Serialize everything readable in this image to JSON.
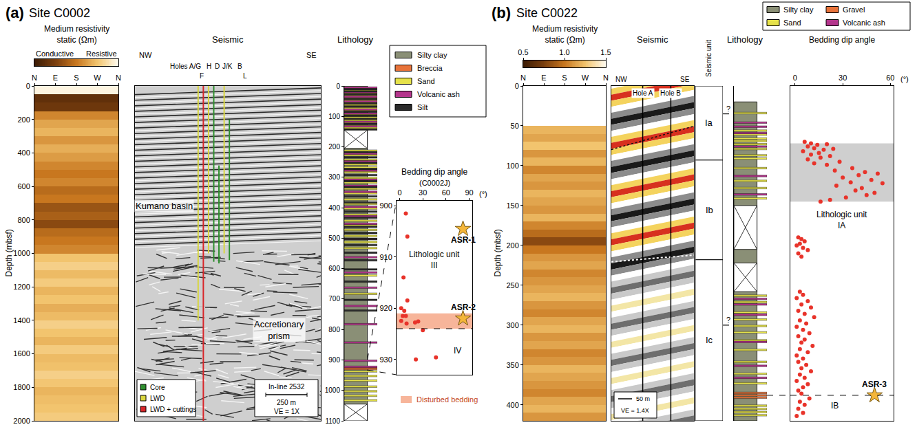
{
  "chart_data": [
    {
      "type": "heatmap",
      "panel": "(a)",
      "site": "Site C0002",
      "title": "Medium resistivity static (Ωm)",
      "colorbar": {
        "range": [
          0,
          1
        ],
        "labels": [
          "Conductive",
          "Resistive"
        ]
      },
      "xlim": [
        0,
        4
      ],
      "xticks": [
        {
          "value": 0,
          "label": "N"
        },
        {
          "value": 1,
          "label": "E"
        },
        {
          "value": 2,
          "label": "S"
        },
        {
          "value": 3,
          "label": "W"
        },
        {
          "value": 4,
          "label": "N"
        }
      ],
      "ylabel": "Depth (mbsf)",
      "ylim": [
        0,
        2000
      ],
      "yticks": [
        0,
        200,
        400,
        600,
        800,
        1000,
        1200,
        1400,
        1600,
        1800,
        2000
      ],
      "depths": [
        25,
        75,
        125,
        175,
        225,
        275,
        325,
        375,
        425,
        475,
        525,
        575,
        625,
        675,
        725,
        775,
        825,
        875,
        925,
        975,
        1025,
        1075,
        1125,
        1175,
        1225,
        1275,
        1325,
        1375,
        1425,
        1475,
        1525,
        1575,
        1625,
        1675,
        1725,
        1775,
        1825,
        1875,
        1925,
        1975
      ],
      "values": [
        0.97,
        0.15,
        0.2,
        0.55,
        0.65,
        0.7,
        0.6,
        0.68,
        0.62,
        0.55,
        0.5,
        0.55,
        0.45,
        0.5,
        0.35,
        0.4,
        0.3,
        0.45,
        0.5,
        0.55,
        0.75,
        0.8,
        0.72,
        0.78,
        0.7,
        0.75,
        0.68,
        0.72,
        0.8,
        0.75,
        0.7,
        0.78,
        0.72,
        0.74,
        0.8,
        0.76,
        0.7,
        0.73,
        0.75,
        0.78
      ]
    },
    {
      "type": "seismic",
      "title": "Seismic",
      "ylim": [
        0,
        2000
      ],
      "tick_labels": false,
      "direction_labels": [
        "NW",
        "SE"
      ],
      "hole_labels": [
        "Holes A/G",
        "H",
        "D",
        "J/K",
        "B"
      ],
      "hole_labels_lower": [
        "F",
        "L"
      ],
      "labels": [
        "Kumano basin",
        "Accretionary prism"
      ],
      "series": [
        {
          "name": "Core",
          "color": "#2f8f2f"
        },
        {
          "name": "LWD",
          "color": "#d9d63f"
        },
        {
          "name": "LWD + cuttings",
          "color": "#d8262a"
        }
      ],
      "boreholes": [
        {
          "kind": "LWD",
          "top": 0,
          "bottom": 1400
        },
        {
          "kind": "LWD + cuttings",
          "top": 0,
          "bottom": 2000
        },
        {
          "kind": "LWD",
          "top": 0,
          "bottom": 1000
        },
        {
          "kind": "Core",
          "top": 0,
          "bottom": 1050
        },
        {
          "kind": "Core",
          "top": 475,
          "bottom": 1060
        },
        {
          "kind": "LWD",
          "top": 0,
          "bottom": 1000
        },
        {
          "kind": "Core",
          "top": 200,
          "bottom": 1040
        }
      ],
      "scale_texts": [
        "In-line 2532",
        "250 m",
        "VE = 1X"
      ]
    },
    {
      "type": "lithology",
      "title": "Lithology",
      "ylim": [
        0,
        1100
      ],
      "yticks": [
        0,
        100,
        200,
        300,
        400,
        500,
        600,
        700,
        800,
        900,
        1000,
        1100
      ],
      "top": 0,
      "bottom": 1100,
      "gaps": [
        [
          145,
          205
        ],
        [
          1045,
          1100
        ]
      ],
      "legend": "right",
      "series": [
        {
          "name": "Silty clay",
          "color": "#8a8f76"
        },
        {
          "name": "Breccia",
          "color": "#e8733a",
          "depths": [
            924,
            927
          ]
        },
        {
          "name": "Sand",
          "color": "#e6e24a",
          "depths": [
            5,
            12,
            20,
            28,
            35,
            45,
            52,
            60,
            70,
            78,
            90,
            100,
            110,
            118,
            128,
            135,
            210,
            225,
            240,
            255,
            265,
            280,
            300,
            315,
            335,
            350,
            370,
            385,
            400,
            420,
            440,
            455,
            470,
            490,
            510,
            530,
            620,
            680,
            935,
            950,
            965,
            985,
            1000,
            1015,
            1030
          ]
        },
        {
          "name": "Volcanic ash",
          "color": "#b4358c",
          "depths": [
            3,
            18,
            33,
            48,
            75,
            88,
            115,
            130,
            220,
            245,
            275,
            305,
            325,
            345,
            395,
            425,
            450,
            500,
            560,
            610,
            660,
            720,
            780,
            840,
            900,
            920
          ]
        },
        {
          "name": "Silt",
          "color": "#2b2b2b",
          "depths": [
            8,
            15,
            25,
            40,
            55,
            65,
            82,
            95,
            105,
            122,
            140,
            215,
            232,
            250,
            270,
            290,
            310,
            330,
            360,
            380,
            410,
            430,
            460,
            480,
            500,
            520,
            545,
            570,
            600,
            640,
            700,
            735
          ]
        }
      ]
    },
    {
      "type": "scatter",
      "title": "Bedding dip angle",
      "subtitle": "(C0002J)",
      "xlabel": "(°)",
      "xlim": [
        -4,
        94
      ],
      "xticks": [
        0,
        30,
        60,
        90
      ],
      "ylim": [
        899,
        933
      ],
      "yticks": [
        900,
        910,
        920,
        930
      ],
      "color": "#e8332a",
      "x": [
        8,
        10,
        5,
        10,
        2,
        6,
        4,
        8,
        2,
        9,
        20,
        24,
        30,
        21,
        47
      ],
      "y": [
        901.5,
        906,
        914,
        918.5,
        920,
        920.5,
        921.5,
        921.5,
        922.5,
        923,
        922.8,
        922.6,
        924.3,
        930,
        929.6
      ],
      "stars": [
        {
          "label": "ASR-1",
          "x": 82,
          "y": 904.5
        },
        {
          "label": "ASR-2",
          "x": 82,
          "y": 922
        }
      ],
      "shaded": {
        "name": "Disturbed bedding",
        "range": [
          921,
          924
        ],
        "color": "#f7b59a"
      },
      "boundary": 924,
      "zone_labels": [
        "Lithologic unit III",
        "IV"
      ]
    },
    {
      "type": "heatmap",
      "panel": "(b)",
      "site": "Site C0022",
      "title": "Medium resistivity static (Ωm)",
      "colorbar": {
        "range": [
          0.5,
          1.5
        ],
        "ticks": [
          0.5,
          {
            "value": 1,
            "label": "1.0"
          },
          1.5
        ]
      },
      "xlim": [
        0,
        4
      ],
      "xticks": [
        {
          "value": 0,
          "label": "N"
        },
        {
          "value": 1,
          "label": "E"
        },
        {
          "value": 2,
          "label": "S"
        },
        {
          "value": 3,
          "label": "W"
        },
        {
          "value": 4,
          "label": "N"
        }
      ],
      "ylabel": "Depth (mbsf)",
      "ylim": [
        0,
        420
      ],
      "yticks": [
        0,
        50,
        100,
        150,
        200,
        250,
        300,
        350,
        400
      ],
      "depths": [
        5,
        15,
        25,
        35,
        45,
        55,
        65,
        75,
        85,
        95,
        105,
        115,
        125,
        135,
        145,
        155,
        165,
        175,
        185,
        195,
        205,
        215,
        225,
        235,
        245,
        255,
        265,
        275,
        285,
        295,
        305,
        315,
        325,
        335,
        345,
        355,
        365,
        375,
        385,
        395,
        405,
        415
      ],
      "values": [
        null,
        null,
        null,
        null,
        null,
        1.2,
        1.15,
        1.25,
        1.1,
        1.2,
        1.05,
        1.15,
        1.1,
        1.2,
        1.15,
        1.1,
        1.2,
        1.05,
        0.95,
        0.8,
        1.0,
        1.1,
        1.15,
        1.05,
        1.1,
        1.15,
        1.2,
        1.1,
        1.05,
        1.15,
        1.2,
        1.1,
        1.15,
        1.05,
        1.1,
        1.2,
        1.15,
        1.1,
        1.05,
        1.15,
        1.2,
        1.1
      ]
    },
    {
      "type": "seismic",
      "title": "Seismic",
      "ylim": [
        0,
        420
      ],
      "tick_labels": false,
      "direction_labels": [
        "NW",
        "SE"
      ],
      "hole_labels": [
        "Hole A",
        "Hole B"
      ],
      "scale_texts": [
        "50 m",
        "VE = 1.4X"
      ]
    },
    {
      "type": "units",
      "title": "Seismic unit",
      "ylim": [
        0,
        420
      ],
      "tick_labels": false,
      "units": [
        {
          "label": "Ia",
          "top": 0,
          "bottom": 93
        },
        {
          "label": "Ib",
          "top": 93,
          "bottom": 218
        },
        {
          "label": "Ic",
          "top": 218,
          "bottom": 420
        }
      ],
      "correlations": [
        {
          "depth": 35,
          "label": "?"
        },
        {
          "depth": 300,
          "label": "?"
        }
      ]
    },
    {
      "type": "lithology",
      "title": "Lithology",
      "ylim": [
        0,
        420
      ],
      "tick_labels": false,
      "top": 20,
      "bottom": 420,
      "gaps": [
        [
          150,
          205
        ],
        [
          222,
          258
        ]
      ],
      "legend": "top",
      "series": [
        {
          "name": "Silty clay",
          "color": "#8a8f76"
        },
        {
          "name": "Sand",
          "color": "#e6e24a",
          "depths": [
            33,
            55,
            60,
            65,
            68,
            72,
            78,
            86,
            90,
            102,
            118,
            127,
            140,
            262,
            270,
            283,
            292,
            300,
            308,
            318,
            330,
            345,
            360,
            372,
            400,
            404,
            408,
            412
          ]
        },
        {
          "name": "Gravel",
          "color": "#e8733a",
          "depths": [
            384,
            387,
            390
          ]
        },
        {
          "name": "Volcanic ash",
          "color": "#b4358c",
          "depths": [
            45,
            50,
            58,
            75,
            112,
            135,
            266,
            273,
            286,
            320,
            350,
            365
          ]
        }
      ]
    },
    {
      "type": "scatter",
      "title": "Bedding dip angle",
      "xlabel": "(°)",
      "xlim": [
        -3,
        62
      ],
      "xticks": [
        0,
        30,
        60
      ],
      "ylim": [
        0,
        420
      ],
      "tick_labels": "x",
      "color": "#e8332a",
      "x": [
        6,
        10,
        14,
        20,
        8,
        12,
        18,
        24,
        5,
        15,
        10,
        22,
        16,
        8,
        28,
        12,
        20,
        36,
        25,
        44,
        52,
        40,
        30,
        48,
        35,
        55,
        26,
        42,
        38,
        50,
        45,
        32,
        22,
        16,
        2,
        4,
        6,
        3,
        1,
        5,
        8,
        2,
        4,
        3,
        5,
        1,
        8,
        4,
        10,
        2,
        6,
        12,
        3,
        7,
        1,
        5,
        9,
        2,
        6,
        4,
        11,
        3,
        8,
        1,
        5,
        2,
        7,
        4,
        10,
        3,
        6,
        1,
        8,
        5,
        2,
        4,
        9,
        3,
        6,
        2,
        5,
        1
      ],
      "y": [
        70,
        72,
        74,
        73,
        76,
        78,
        80,
        79,
        82,
        84,
        86,
        88,
        90,
        92,
        95,
        97,
        99,
        103,
        106,
        108,
        110,
        112,
        115,
        118,
        121,
        122,
        125,
        128,
        131,
        134,
        137,
        140,
        143,
        145,
        190,
        192,
        195,
        198,
        200,
        203,
        206,
        210,
        214,
        258,
        262,
        266,
        270,
        274,
        278,
        282,
        286,
        290,
        294,
        298,
        302,
        306,
        310,
        314,
        318,
        322,
        326,
        330,
        334,
        338,
        342,
        346,
        350,
        354,
        358,
        362,
        366,
        370,
        374,
        378,
        382,
        386,
        392,
        396,
        400,
        405,
        410,
        414
      ],
      "stars": [
        {
          "label": "ASR-3",
          "x": 50,
          "y": 388
        }
      ],
      "shaded": {
        "range": [
          72,
          145
        ],
        "color": "#cfcfcf"
      },
      "boundary": 388,
      "zone_labels": [
        "Lithologic unit IA",
        "IB"
      ]
    }
  ]
}
